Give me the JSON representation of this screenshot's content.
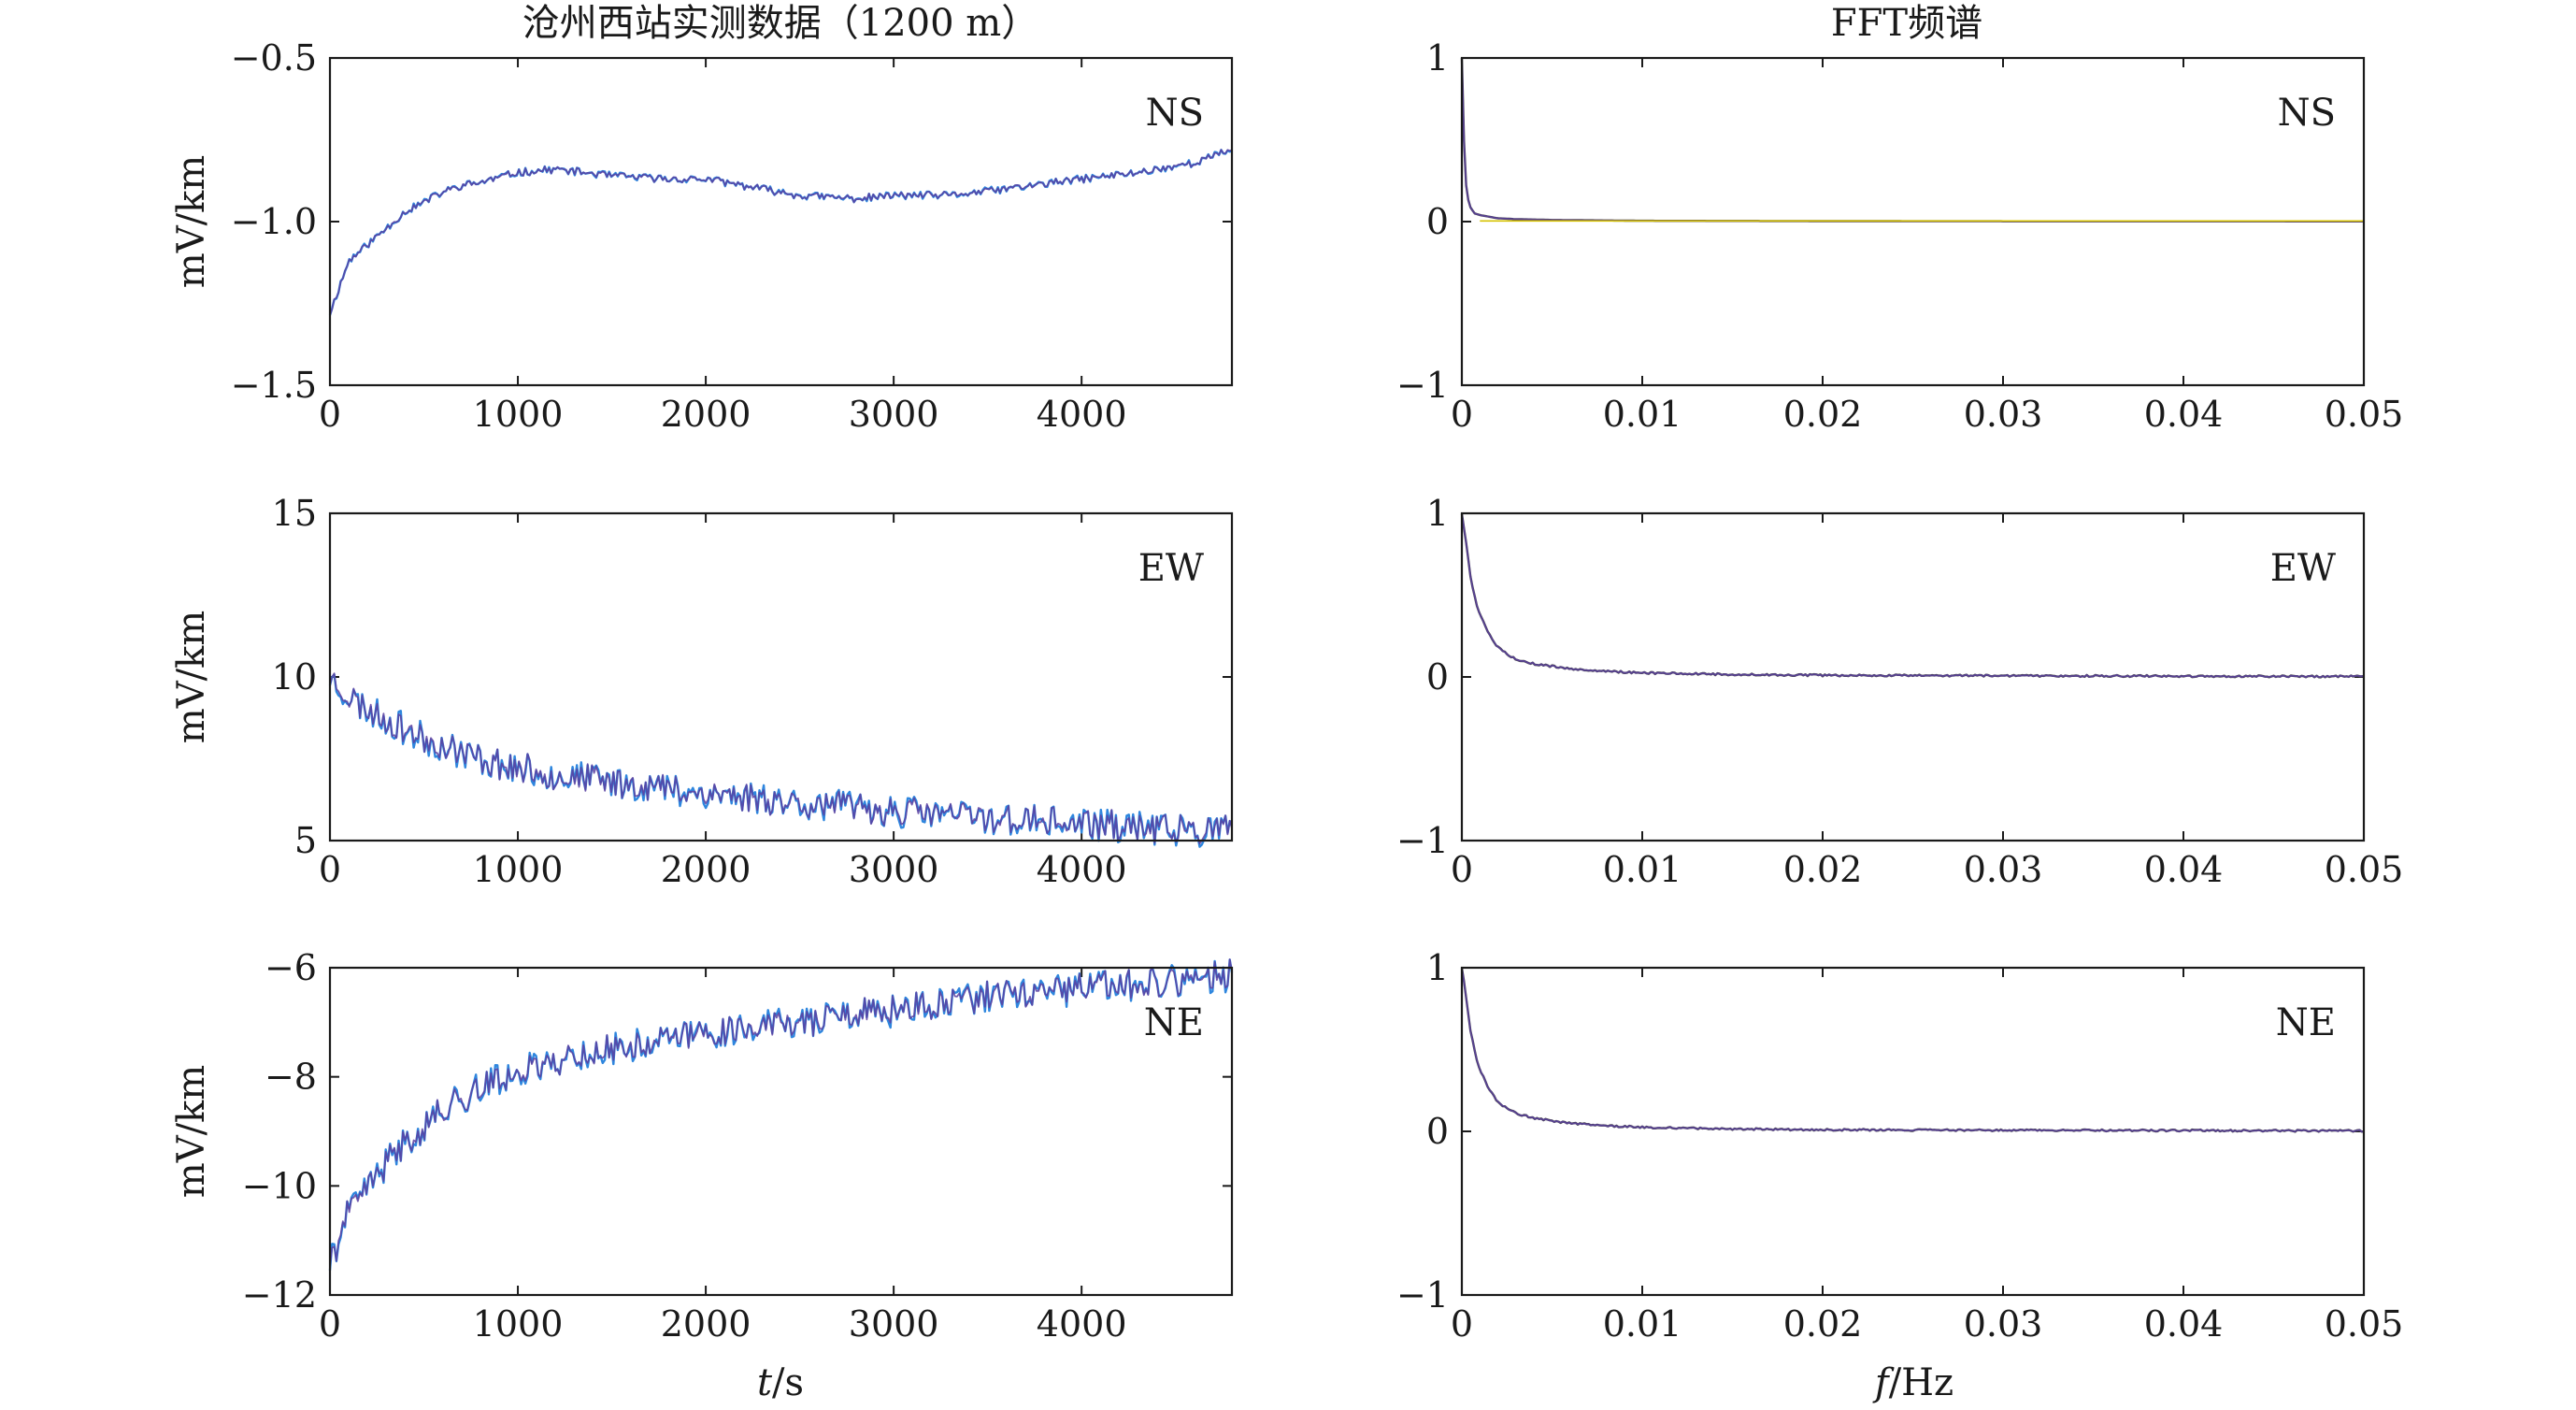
{
  "figure": {
    "left_title": "沧州西站实测数据（1200 m）",
    "right_title": "FFT频谱",
    "left_xlabel_italic": "t",
    "left_xlabel_rest": "/s",
    "right_xlabel_italic": "f",
    "right_xlabel_rest": "/Hz"
  },
  "colors": {
    "frame": "#1a1a1a",
    "trace_blue": "#2e86de",
    "trace_purple": "#5b3fa0",
    "trace_gray": "#444444",
    "trace_yellow": "#d6c200"
  },
  "chart_data": [
    {
      "id": "ns-time",
      "type": "line",
      "panel_label": "NS",
      "title": "沧州西站实测数据（1200 m）",
      "ylabel": "mV/km",
      "xlabel": "",
      "xlim": [
        0,
        4800
      ],
      "ylim": [
        -1.5,
        -0.5
      ],
      "xticks": [
        0,
        1000,
        2000,
        3000,
        4000
      ],
      "xtick_labels": [
        "0",
        "1000",
        "2000",
        "3000",
        "4000"
      ],
      "yticks": [
        -1.5,
        -1.0,
        -0.5
      ],
      "ytick_labels": [
        "−1.5",
        "−1.0",
        "−0.5"
      ],
      "x": [
        0,
        100,
        200,
        300,
        400,
        500,
        600,
        700,
        800,
        1000,
        1200,
        1500,
        1800,
        2000,
        2200,
        2500,
        2800,
        3000,
        3300,
        3600,
        4000,
        4300,
        4600,
        4800
      ],
      "y": [
        -1.28,
        -1.12,
        -1.07,
        -1.02,
        -0.97,
        -0.94,
        -0.91,
        -0.89,
        -0.88,
        -0.85,
        -0.84,
        -0.86,
        -0.87,
        -0.87,
        -0.89,
        -0.92,
        -0.93,
        -0.92,
        -0.92,
        -0.9,
        -0.87,
        -0.85,
        -0.82,
        -0.78
      ],
      "noise": 0.012,
      "seed": 11
    },
    {
      "id": "ns-fft",
      "type": "line",
      "panel_label": "NS",
      "title": "FFT频谱",
      "ylabel": "",
      "xlabel": "",
      "xlim": [
        0,
        0.05
      ],
      "ylim": [
        -1,
        1
      ],
      "xticks": [
        0,
        0.01,
        0.02,
        0.03,
        0.04,
        0.05
      ],
      "xtick_labels": [
        "0",
        "0.01",
        "0.02",
        "0.03",
        "0.04",
        "0.05"
      ],
      "yticks": [
        -1,
        0,
        1
      ],
      "ytick_labels": [
        "−1",
        "0",
        "1"
      ],
      "x": [
        0,
        0.0001,
        0.0002,
        0.0004,
        0.0007,
        0.001,
        0.0015,
        0.002,
        0.003,
        0.005,
        0.01,
        0.02,
        0.03,
        0.04,
        0.05
      ],
      "y": [
        1.0,
        0.55,
        0.25,
        0.1,
        0.05,
        0.04,
        0.03,
        0.02,
        0.015,
        0.01,
        0.005,
        0.003,
        0.002,
        0.002,
        0.001
      ],
      "noise": 0.0,
      "seed": 3
    },
    {
      "id": "ew-time",
      "type": "line",
      "panel_label": "EW",
      "title": "",
      "ylabel": "mV/km",
      "xlabel": "",
      "xlim": [
        0,
        4800
      ],
      "ylim": [
        5,
        15
      ],
      "xticks": [
        0,
        1000,
        2000,
        3000,
        4000
      ],
      "xtick_labels": [
        "0",
        "1000",
        "2000",
        "3000",
        "4000"
      ],
      "yticks": [
        5,
        10,
        15
      ],
      "ytick_labels": [
        "5",
        "10",
        "15"
      ],
      "x": [
        0,
        100,
        200,
        300,
        400,
        500,
        600,
        800,
        1000,
        1200,
        1500,
        1800,
        2000,
        2300,
        2600,
        3000,
        3300,
        3600,
        4000,
        4300,
        4600,
        4800
      ],
      "y": [
        10.0,
        9.4,
        9.0,
        8.7,
        8.4,
        8.1,
        7.9,
        7.5,
        7.2,
        7.0,
        6.8,
        6.6,
        6.45,
        6.3,
        6.1,
        5.9,
        5.8,
        5.65,
        5.5,
        5.4,
        5.3,
        5.3
      ],
      "noise": 0.05,
      "seed": 23
    },
    {
      "id": "ew-fft",
      "type": "line",
      "panel_label": "EW",
      "title": "",
      "ylabel": "",
      "xlabel": "",
      "xlim": [
        0,
        0.05
      ],
      "ylim": [
        -1,
        1
      ],
      "xticks": [
        0,
        0.01,
        0.02,
        0.03,
        0.04,
        0.05
      ],
      "xtick_labels": [
        "0",
        "0.01",
        "0.02",
        "0.03",
        "0.04",
        "0.05"
      ],
      "yticks": [
        -1,
        0,
        1
      ],
      "ytick_labels": [
        "−1",
        "0",
        "1"
      ],
      "x": [
        0,
        0.0002,
        0.0005,
        0.0008,
        0.001,
        0.0015,
        0.002,
        0.0025,
        0.003,
        0.004,
        0.005,
        0.006,
        0.008,
        0.01,
        0.015,
        0.02,
        0.03,
        0.04,
        0.05
      ],
      "y": [
        1.0,
        0.85,
        0.6,
        0.45,
        0.38,
        0.26,
        0.18,
        0.14,
        0.11,
        0.08,
        0.065,
        0.05,
        0.035,
        0.025,
        0.015,
        0.01,
        0.007,
        0.005,
        0.003
      ],
      "noise": 0.003,
      "seed": 5
    },
    {
      "id": "ne-time",
      "type": "line",
      "panel_label": "NE",
      "title": "",
      "ylabel": "mV/km",
      "xlabel": "t/s",
      "xlim": [
        0,
        4800
      ],
      "ylim": [
        -12,
        -6
      ],
      "xticks": [
        0,
        1000,
        2000,
        3000,
        4000
      ],
      "xtick_labels": [
        "0",
        "1000",
        "2000",
        "3000",
        "4000"
      ],
      "yticks": [
        -12,
        -10,
        -8,
        -6
      ],
      "ytick_labels": [
        "−12",
        "−10",
        "−8",
        "−6"
      ],
      "x": [
        0,
        100,
        200,
        300,
        400,
        500,
        600,
        800,
        1000,
        1200,
        1500,
        1800,
        2000,
        2300,
        2600,
        3000,
        3300,
        3600,
        4000,
        4300,
        4600,
        4800
      ],
      "y": [
        -11.4,
        -10.5,
        -10.0,
        -9.6,
        -9.2,
        -8.9,
        -8.6,
        -8.2,
        -7.9,
        -7.7,
        -7.5,
        -7.3,
        -7.2,
        -7.05,
        -6.95,
        -6.8,
        -6.65,
        -6.5,
        -6.4,
        -6.3,
        -6.2,
        -6.15
      ],
      "noise": 0.05,
      "seed": 41
    },
    {
      "id": "ne-fft",
      "type": "line",
      "panel_label": "NE",
      "title": "",
      "ylabel": "",
      "xlabel": "f/Hz",
      "xlim": [
        0,
        0.05
      ],
      "ylim": [
        -1,
        1
      ],
      "xticks": [
        0,
        0.01,
        0.02,
        0.03,
        0.04,
        0.05
      ],
      "xtick_labels": [
        "0",
        "0.01",
        "0.02",
        "0.03",
        "0.04",
        "0.05"
      ],
      "yticks": [
        -1,
        0,
        1
      ],
      "ytick_labels": [
        "−1",
        "0",
        "1"
      ],
      "x": [
        0,
        0.0002,
        0.0005,
        0.0008,
        0.001,
        0.0015,
        0.002,
        0.0025,
        0.003,
        0.004,
        0.005,
        0.006,
        0.008,
        0.01,
        0.015,
        0.02,
        0.03,
        0.04,
        0.05
      ],
      "y": [
        1.0,
        0.85,
        0.6,
        0.45,
        0.38,
        0.26,
        0.18,
        0.14,
        0.11,
        0.08,
        0.065,
        0.05,
        0.035,
        0.025,
        0.015,
        0.01,
        0.007,
        0.005,
        0.003
      ],
      "noise": 0.003,
      "seed": 9
    }
  ]
}
